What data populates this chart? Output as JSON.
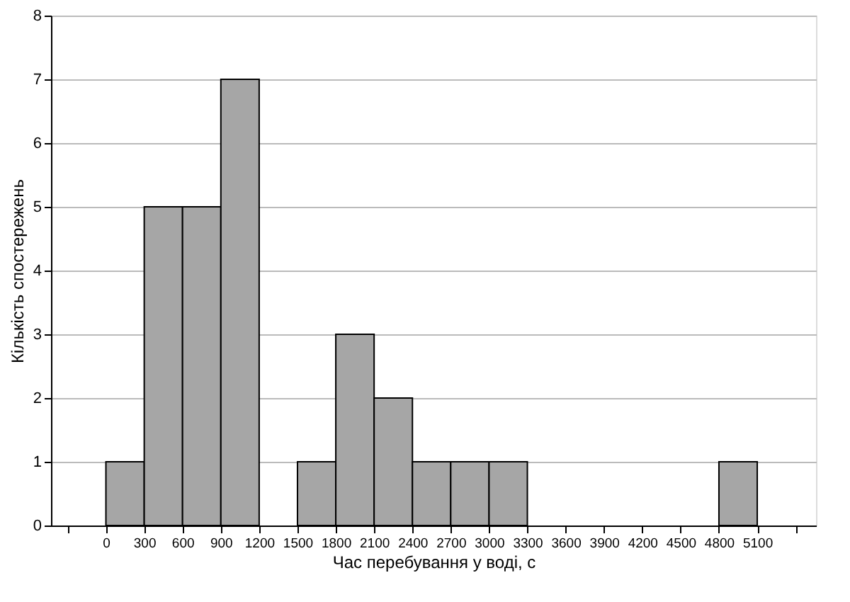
{
  "chart_data": {
    "type": "histogram",
    "xlabel": "Час перебування у воді, с",
    "ylabel": "Кількість спостережень",
    "bins": [
      0,
      300,
      600,
      900,
      1200,
      1500,
      1800,
      2100,
      2400,
      2700,
      3000,
      3300,
      3600,
      3900,
      4200,
      4500,
      4800,
      5100
    ],
    "values": [
      1,
      5,
      5,
      7,
      0,
      1,
      3,
      2,
      1,
      1,
      1,
      0,
      0,
      0,
      0,
      0,
      1
    ],
    "color": "#a6a6a6",
    "xlim": [
      -430,
      5560
    ],
    "xticks": [
      {
        "value": -300,
        "label": null
      },
      0,
      300,
      600,
      900,
      1200,
      1500,
      1800,
      2100,
      2400,
      2700,
      3000,
      3300,
      3600,
      3900,
      4200,
      4500,
      4800,
      5100,
      {
        "value": 5400,
        "label": null
      }
    ],
    "ylim": [
      0,
      8
    ],
    "yticks": [
      0,
      1,
      2,
      3,
      4,
      5,
      6,
      7,
      8
    ],
    "grid": "y"
  }
}
